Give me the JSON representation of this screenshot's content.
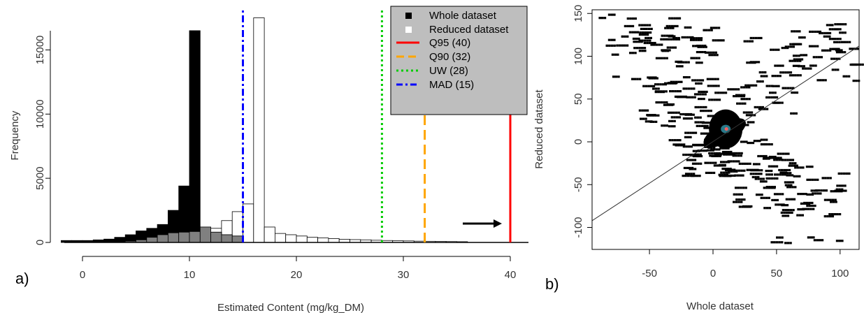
{
  "figure": {
    "label_a": "a)",
    "label_b": "b)"
  },
  "chart_data": [
    {
      "type": "bar",
      "subtype": "overlaid-histogram",
      "title": "",
      "xlabel": "Estimated Content (mg/kg_DM)",
      "ylabel": "Frequency",
      "xlim": [
        -2,
        42
      ],
      "ylim": [
        0,
        17500
      ],
      "bin_width": 1,
      "x_ticks": [
        0,
        10,
        20,
        30,
        40
      ],
      "y_ticks": [
        0,
        5000,
        10000,
        15000
      ],
      "legend_position": "top-right",
      "series": [
        {
          "name": "Whole dataset",
          "color": "#000000",
          "bins": [
            {
              "x0": -2,
              "count": 150
            },
            {
              "x0": -1,
              "count": 150
            },
            {
              "x0": 0,
              "count": 150
            },
            {
              "x0": 1,
              "count": 200
            },
            {
              "x0": 2,
              "count": 260
            },
            {
              "x0": 3,
              "count": 400
            },
            {
              "x0": 4,
              "count": 600
            },
            {
              "x0": 5,
              "count": 900
            },
            {
              "x0": 6,
              "count": 1100
            },
            {
              "x0": 7,
              "count": 1400
            },
            {
              "x0": 8,
              "count": 2500
            },
            {
              "x0": 9,
              "count": 4400
            },
            {
              "x0": 10,
              "count": 16500
            },
            {
              "x0": 11,
              "count": 1200
            },
            {
              "x0": 12,
              "count": 800
            },
            {
              "x0": 13,
              "count": 600
            },
            {
              "x0": 14,
              "count": 500
            }
          ]
        },
        {
          "name": "Reduced dataset",
          "color": "#ffffff",
          "bins": [
            {
              "x0": 4,
              "count": 100
            },
            {
              "x0": 5,
              "count": 200
            },
            {
              "x0": 6,
              "count": 400
            },
            {
              "x0": 7,
              "count": 600
            },
            {
              "x0": 8,
              "count": 750
            },
            {
              "x0": 9,
              "count": 800
            },
            {
              "x0": 10,
              "count": 850
            },
            {
              "x0": 11,
              "count": 1200
            },
            {
              "x0": 12,
              "count": 1100
            },
            {
              "x0": 13,
              "count": 1700
            },
            {
              "x0": 14,
              "count": 2400
            },
            {
              "x0": 15,
              "count": 3000
            },
            {
              "x0": 16,
              "count": 17500
            },
            {
              "x0": 17,
              "count": 1200
            },
            {
              "x0": 18,
              "count": 700
            },
            {
              "x0": 19,
              "count": 600
            },
            {
              "x0": 20,
              "count": 500
            },
            {
              "x0": 21,
              "count": 400
            },
            {
              "x0": 22,
              "count": 350
            },
            {
              "x0": 23,
              "count": 300
            },
            {
              "x0": 24,
              "count": 250
            },
            {
              "x0": 25,
              "count": 220
            },
            {
              "x0": 26,
              "count": 200
            },
            {
              "x0": 27,
              "count": 170
            },
            {
              "x0": 28,
              "count": 150
            },
            {
              "x0": 29,
              "count": 130
            },
            {
              "x0": 30,
              "count": 120
            },
            {
              "x0": 31,
              "count": 100
            },
            {
              "x0": 32,
              "count": 90
            },
            {
              "x0": 33,
              "count": 80
            },
            {
              "x0": 34,
              "count": 70
            },
            {
              "x0": 35,
              "count": 60
            }
          ]
        }
      ],
      "vlines": [
        {
          "name": "Q95 (40)",
          "x": 40,
          "color": "#ff0000",
          "style": "solid"
        },
        {
          "name": "Q90 (32)",
          "x": 32,
          "color": "#ffa500",
          "style": "dashed"
        },
        {
          "name": "UW (28)",
          "x": 28,
          "color": "#00cc00",
          "style": "dotted"
        },
        {
          "name": "MAD (15)",
          "x": 15,
          "color": "#0000ff",
          "style": "dashdot"
        }
      ],
      "annotations": [
        {
          "type": "arrow",
          "direction": "right",
          "from": [
            35.5,
            1800
          ],
          "to": [
            39,
            1800
          ]
        }
      ]
    },
    {
      "type": "heatmap",
      "subtype": "2d-density",
      "title": "",
      "xlabel": "Whole dataset",
      "ylabel": "Reduced dataset",
      "xlim": [
        -95,
        115
      ],
      "ylim": [
        -125,
        155
      ],
      "x_ticks": [
        -50,
        0,
        50,
        100
      ],
      "y_ticks": [
        -100,
        -50,
        0,
        50,
        100,
        150
      ],
      "reference_line": {
        "from": [
          -95,
          -92
        ],
        "to": [
          115,
          112
        ]
      },
      "core": {
        "center": [
          10,
          15
        ],
        "colors": [
          "#000000",
          "#2a7a8a",
          "#ff6060"
        ]
      },
      "clusters": [
        {
          "x": [
            -90,
            5
          ],
          "y": [
            100,
            150
          ]
        },
        {
          "x": [
            -80,
            -10
          ],
          "y": [
            60,
            130
          ]
        },
        {
          "x": [
            -60,
            0
          ],
          "y": [
            20,
            80
          ]
        },
        {
          "x": [
            -40,
            0
          ],
          "y": [
            -15,
            40
          ]
        },
        {
          "x": [
            -15,
            50
          ],
          "y": [
            -10,
            70
          ]
        },
        {
          "x": [
            15,
            70
          ],
          "y": [
            30,
            135
          ]
        },
        {
          "x": [
            60,
            110
          ],
          "y": [
            70,
            140
          ]
        },
        {
          "x": [
            5,
            60
          ],
          "y": [
            -40,
            -10
          ]
        },
        {
          "x": [
            15,
            75
          ],
          "y": [
            -80,
            -30
          ]
        },
        {
          "x": [
            45,
            100
          ],
          "y": [
            -120,
            -25
          ]
        },
        {
          "x": [
            -25,
            10
          ],
          "y": [
            -40,
            0
          ]
        }
      ]
    }
  ]
}
